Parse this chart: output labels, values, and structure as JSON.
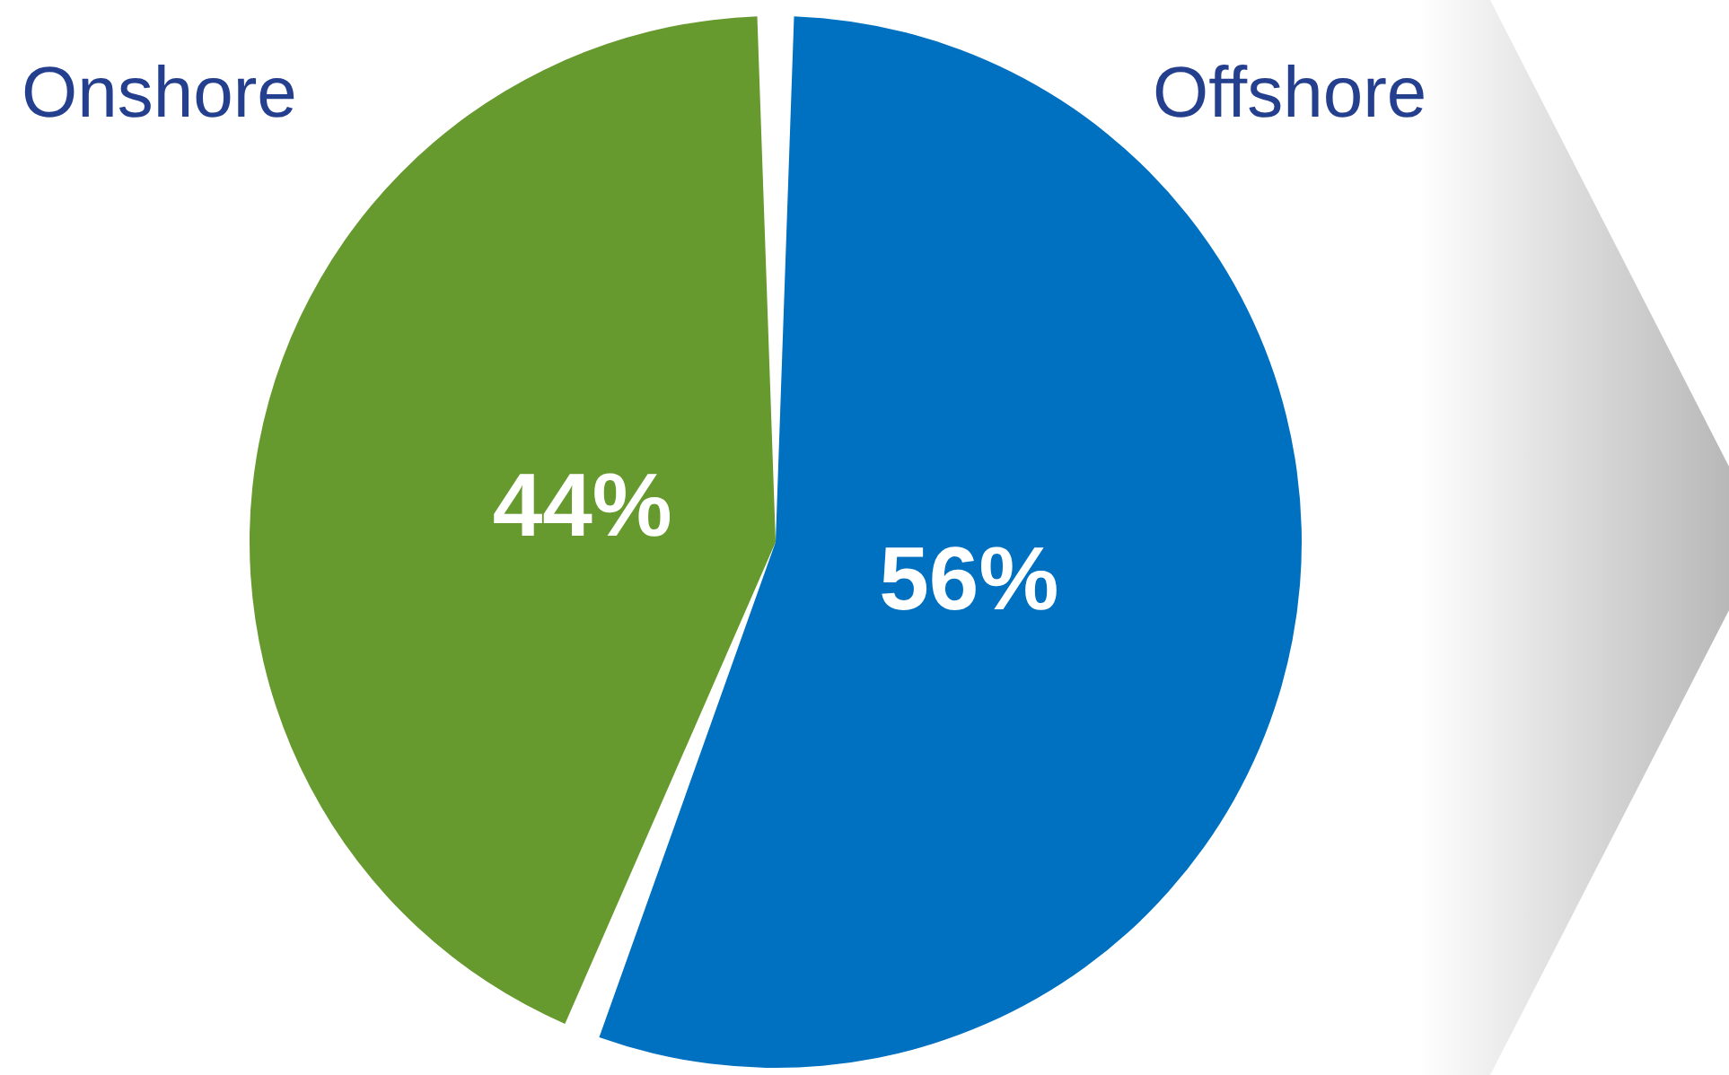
{
  "chart_data": {
    "type": "pie",
    "categories": [
      "Onshore",
      "Offshore"
    ],
    "values": [
      44,
      56
    ],
    "value_labels": [
      "44%",
      "56%"
    ],
    "data_labels": true,
    "colors": [
      "#66992e",
      "#0070c0"
    ]
  }
}
